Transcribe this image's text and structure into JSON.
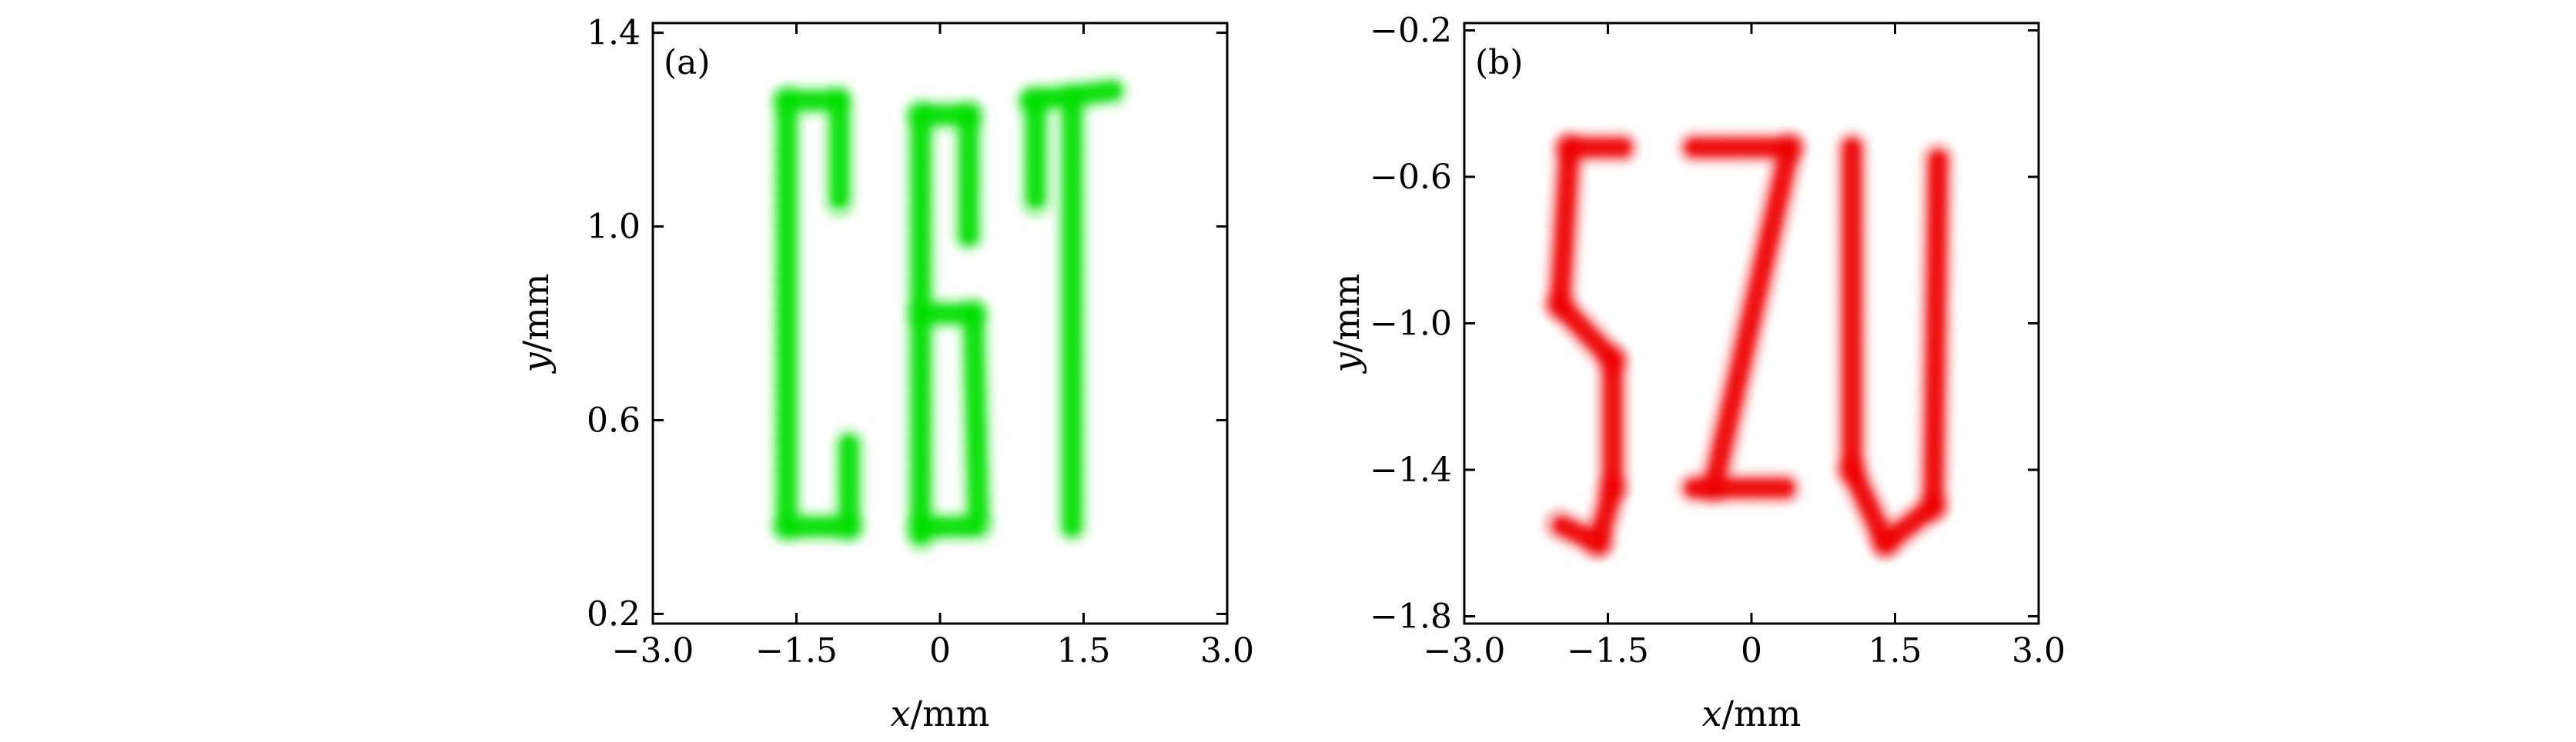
{
  "chart_data": [
    {
      "type": "heatmap",
      "panel_label": "(a)",
      "xlabel_var": "x",
      "xlabel_unit": "/mm",
      "ylabel_var": "y",
      "ylabel_unit": "/mm",
      "xlim": [
        -3.0,
        3.0
      ],
      "ylim": [
        0.18,
        1.42
      ],
      "xticks": [
        -3.0,
        -1.5,
        0,
        1.5,
        3.0
      ],
      "xtick_labels": [
        "−3.0",
        "−1.5",
        "0",
        "1.5",
        "3.0"
      ],
      "yticks": [
        0.2,
        0.6,
        1.0,
        1.4
      ],
      "ytick_labels": [
        "0.2",
        "0.6",
        "1.0",
        "1.4"
      ],
      "color": "#00e000",
      "content": "reconstructed letter image",
      "strokes": [
        {
          "from": [
            -1.1,
            1.26
          ],
          "to": [
            -1.6,
            1.26
          ]
        },
        {
          "from": [
            -1.6,
            1.26
          ],
          "to": [
            -1.6,
            0.38
          ]
        },
        {
          "from": [
            -1.6,
            0.38
          ],
          "to": [
            -0.95,
            0.38
          ]
        },
        {
          "from": [
            -0.95,
            0.38
          ],
          "to": [
            -0.95,
            0.55
          ]
        },
        {
          "from": [
            -1.05,
            1.26
          ],
          "to": [
            -1.05,
            1.05
          ]
        },
        {
          "from": [
            -0.2,
            1.23
          ],
          "to": [
            -0.2,
            0.36
          ]
        },
        {
          "from": [
            -0.2,
            1.23
          ],
          "to": [
            0.3,
            1.23
          ]
        },
        {
          "from": [
            0.3,
            1.23
          ],
          "to": [
            0.3,
            0.98
          ]
        },
        {
          "from": [
            -0.2,
            0.82
          ],
          "to": [
            0.35,
            0.82
          ]
        },
        {
          "from": [
            0.35,
            0.82
          ],
          "to": [
            0.4,
            0.4
          ]
        },
        {
          "from": [
            -0.2,
            0.38
          ],
          "to": [
            0.4,
            0.38
          ]
        },
        {
          "from": [
            0.95,
            1.26
          ],
          "to": [
            1.8,
            1.28
          ]
        },
        {
          "from": [
            1.38,
            1.26
          ],
          "to": [
            1.38,
            0.38
          ]
        },
        {
          "from": [
            1.0,
            1.26
          ],
          "to": [
            1.0,
            1.05
          ]
        }
      ]
    },
    {
      "type": "heatmap",
      "panel_label": "(b)",
      "xlabel_var": "x",
      "xlabel_unit": "/mm",
      "ylabel_var": "y",
      "ylabel_unit": "/mm",
      "xlim": [
        -3.0,
        3.0
      ],
      "ylim": [
        -1.82,
        -0.18
      ],
      "xticks": [
        -3.0,
        -1.5,
        0,
        1.5,
        3.0
      ],
      "xtick_labels": [
        "−3.0",
        "−1.5",
        "0",
        "1.5",
        "3.0"
      ],
      "yticks": [
        -0.2,
        -0.6,
        -1.0,
        -1.4,
        -1.8
      ],
      "ytick_labels": [
        "−0.2",
        "−0.6",
        "−1.0",
        "−1.4",
        "−1.8"
      ],
      "color": "#ee0000",
      "content": "reconstructed letter image",
      "strokes": [
        {
          "from": [
            -1.35,
            -0.52
          ],
          "to": [
            -1.9,
            -0.52
          ]
        },
        {
          "from": [
            -1.9,
            -0.52
          ],
          "to": [
            -2.0,
            -0.95
          ]
        },
        {
          "from": [
            -2.0,
            -0.95
          ],
          "to": [
            -1.45,
            -1.1
          ]
        },
        {
          "from": [
            -1.45,
            -1.1
          ],
          "to": [
            -1.45,
            -1.45
          ]
        },
        {
          "from": [
            -1.45,
            -1.45
          ],
          "to": [
            -1.6,
            -1.6
          ]
        },
        {
          "from": [
            -1.6,
            -1.6
          ],
          "to": [
            -2.0,
            -1.55
          ]
        },
        {
          "from": [
            -0.6,
            -0.52
          ],
          "to": [
            0.4,
            -0.52
          ]
        },
        {
          "from": [
            0.4,
            -0.52
          ],
          "to": [
            -0.4,
            -1.45
          ]
        },
        {
          "from": [
            -0.6,
            -1.45
          ],
          "to": [
            0.35,
            -1.45
          ]
        },
        {
          "from": [
            1.05,
            -0.52
          ],
          "to": [
            1.05,
            -1.4
          ]
        },
        {
          "from": [
            1.05,
            -1.4
          ],
          "to": [
            1.4,
            -1.6
          ]
        },
        {
          "from": [
            1.4,
            -1.6
          ],
          "to": [
            1.9,
            -1.5
          ]
        },
        {
          "from": [
            1.9,
            -1.5
          ],
          "to": [
            1.95,
            -0.55
          ]
        }
      ]
    }
  ]
}
